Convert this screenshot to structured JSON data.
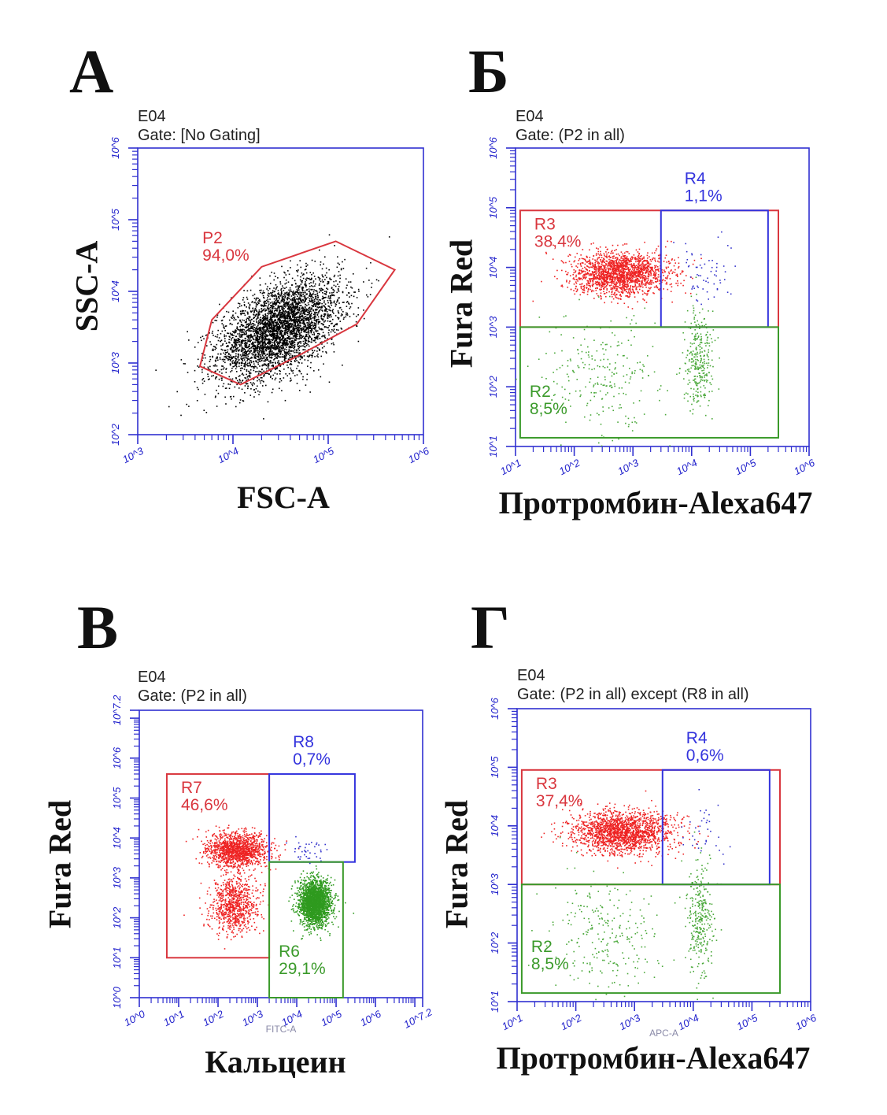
{
  "chart_data": [
    {
      "type": "scatter",
      "panel": "А",
      "title": "E04",
      "subtitle": "Gate: [No Gating]",
      "xlabel": "FSC-A",
      "ylabel": "SSC-A",
      "x_scale": "log",
      "y_scale": "log",
      "xlim": [
        1000,
        1000000
      ],
      "ylim": [
        100,
        1000000
      ],
      "x_ticks": [
        "10^3",
        "10^4",
        "10^5",
        "10^6"
      ],
      "y_ticks": [
        "10^2",
        "10^3",
        "10^4",
        "10^5",
        "10^6"
      ],
      "gates": [
        {
          "name": "P2",
          "percent": "94,0%",
          "shape": "polygon",
          "color": "#d9363e",
          "vertices": [
            [
              4500,
              900
            ],
            [
              6000,
              4000
            ],
            [
              20000,
              22000
            ],
            [
              120000,
              50000
            ],
            [
              500000,
              20000
            ],
            [
              200000,
              3500
            ],
            [
              45000,
              1200
            ],
            [
              12000,
              500
            ]
          ]
        }
      ],
      "populations": [
        {
          "color": "#000000",
          "center": [
            30000,
            3000
          ],
          "spread_log": [
            0.32,
            0.3
          ],
          "count": 4000
        }
      ]
    },
    {
      "type": "scatter",
      "panel": "Б",
      "title": "E04",
      "subtitle": "Gate: (P2 in all)",
      "xlabel": "Протромбин-Alexa647",
      "ylabel": "Fura Red",
      "x_scale": "log",
      "y_scale": "log",
      "xlim": [
        10,
        1000000
      ],
      "ylim": [
        10,
        1000000
      ],
      "x_ticks": [
        "10^1",
        "10^2",
        "10^3",
        "10^4",
        "10^5",
        "10^6"
      ],
      "y_ticks": [
        "10^1",
        "10^2",
        "10^3",
        "10^4",
        "10^5",
        "10^6"
      ],
      "gates": [
        {
          "name": "R3",
          "percent": "38,4%",
          "shape": "rect",
          "color": "#d9363e",
          "x": [
            12,
            300000
          ],
          "y": [
            1000,
            90000
          ]
        },
        {
          "name": "R4",
          "percent": "1,1%",
          "shape": "rect",
          "color": "#3333dd",
          "x": [
            3000,
            200000
          ],
          "y": [
            1000,
            90000
          ]
        },
        {
          "name": "R2",
          "percent": "8,5%",
          "shape": "rect",
          "color": "#3a9a2a",
          "x": [
            12,
            300000
          ],
          "y": [
            14,
            1000
          ]
        }
      ],
      "populations": [
        {
          "color": "#ee2222",
          "center": [
            600,
            8000
          ],
          "spread_log": [
            0.42,
            0.18
          ],
          "count": 1800
        },
        {
          "color": "#3333cc",
          "center": [
            15000,
            8000
          ],
          "spread_log": [
            0.25,
            0.3
          ],
          "count": 60
        },
        {
          "color": "#4aa83a",
          "center": [
            13000,
            250
          ],
          "spread_log": [
            0.12,
            0.45
          ],
          "count": 300
        },
        {
          "color": "#4aa83a",
          "center": [
            300,
            150
          ],
          "spread_log": [
            0.5,
            0.5
          ],
          "count": 250
        }
      ]
    },
    {
      "type": "scatter",
      "panel": "В",
      "title": "E04",
      "subtitle": "Gate: (P2 in all)",
      "xlabel": "Кальцеин",
      "ylabel": "Fura Red",
      "axis_name_x": "FITC-A",
      "x_scale": "log",
      "y_scale": "log",
      "xlim": [
        1,
        15800000
      ],
      "ylim": [
        1,
        15800000
      ],
      "x_ticks": [
        "10^0",
        "10^1",
        "10^2",
        "10^3",
        "10^4",
        "10^5",
        "10^6",
        "10^7.2"
      ],
      "y_ticks": [
        "10^0",
        "10^1",
        "10^2",
        "10^3",
        "10^4",
        "10^5",
        "10^6",
        "10^7.2"
      ],
      "gates": [
        {
          "name": "R7",
          "percent": "46,6%",
          "shape": "rect",
          "color": "#d9363e",
          "x": [
            5,
            2000
          ],
          "y": [
            10,
            400000
          ]
        },
        {
          "name": "R8",
          "percent": "0,7%",
          "shape": "rect",
          "color": "#3333dd",
          "x": [
            2000,
            300000
          ],
          "y": [
            2500,
            400000
          ]
        },
        {
          "name": "R6",
          "percent": "29,1%",
          "shape": "rect",
          "color": "#3a9a2a",
          "x": [
            2000,
            150000
          ],
          "y": [
            1,
            2500
          ]
        }
      ],
      "populations": [
        {
          "color": "#ee2222",
          "center": [
            300,
            5000
          ],
          "spread_log": [
            0.38,
            0.22
          ],
          "count": 1300
        },
        {
          "color": "#ee2222",
          "center": [
            250,
            220
          ],
          "spread_log": [
            0.3,
            0.35
          ],
          "count": 800
        },
        {
          "color": "#2f9a1f",
          "center": [
            28000,
            250
          ],
          "spread_log": [
            0.2,
            0.28
          ],
          "count": 2200
        },
        {
          "color": "#3333cc",
          "center": [
            15000,
            5000
          ],
          "spread_log": [
            0.3,
            0.15
          ],
          "count": 40
        }
      ]
    },
    {
      "type": "scatter",
      "panel": "Г",
      "title": "E04",
      "subtitle": "Gate: (P2 in all) except (R8 in all)",
      "xlabel": "Протромбин-Alexa647",
      "ylabel": "Fura Red",
      "axis_name_x": "APC-A",
      "x_scale": "log",
      "y_scale": "log",
      "xlim": [
        10,
        1000000
      ],
      "ylim": [
        10,
        1000000
      ],
      "x_ticks": [
        "10^1",
        "10^2",
        "10^3",
        "10^4",
        "10^5",
        "10^6"
      ],
      "y_ticks": [
        "10^1",
        "10^2",
        "10^3",
        "10^4",
        "10^5",
        "10^6"
      ],
      "gates": [
        {
          "name": "R3",
          "percent": "37,4%",
          "shape": "rect",
          "color": "#d9363e",
          "x": [
            12,
            300000
          ],
          "y": [
            1000,
            90000
          ]
        },
        {
          "name": "R4",
          "percent": "0,6%",
          "shape": "rect",
          "color": "#3333dd",
          "x": [
            3000,
            200000
          ],
          "y": [
            1000,
            90000
          ]
        },
        {
          "name": "R2",
          "percent": "8,5%",
          "shape": "rect",
          "color": "#3a9a2a",
          "x": [
            12,
            300000
          ],
          "y": [
            14,
            1000
          ]
        }
      ],
      "populations": [
        {
          "color": "#ee2222",
          "center": [
            600,
            8000
          ],
          "spread_log": [
            0.42,
            0.18
          ],
          "count": 1800
        },
        {
          "color": "#3333cc",
          "center": [
            15000,
            8000
          ],
          "spread_log": [
            0.25,
            0.3
          ],
          "count": 35
        },
        {
          "color": "#4aa83a",
          "center": [
            13000,
            250
          ],
          "spread_log": [
            0.12,
            0.45
          ],
          "count": 300
        },
        {
          "color": "#4aa83a",
          "center": [
            300,
            150
          ],
          "spread_log": [
            0.5,
            0.5
          ],
          "count": 250
        }
      ]
    }
  ]
}
